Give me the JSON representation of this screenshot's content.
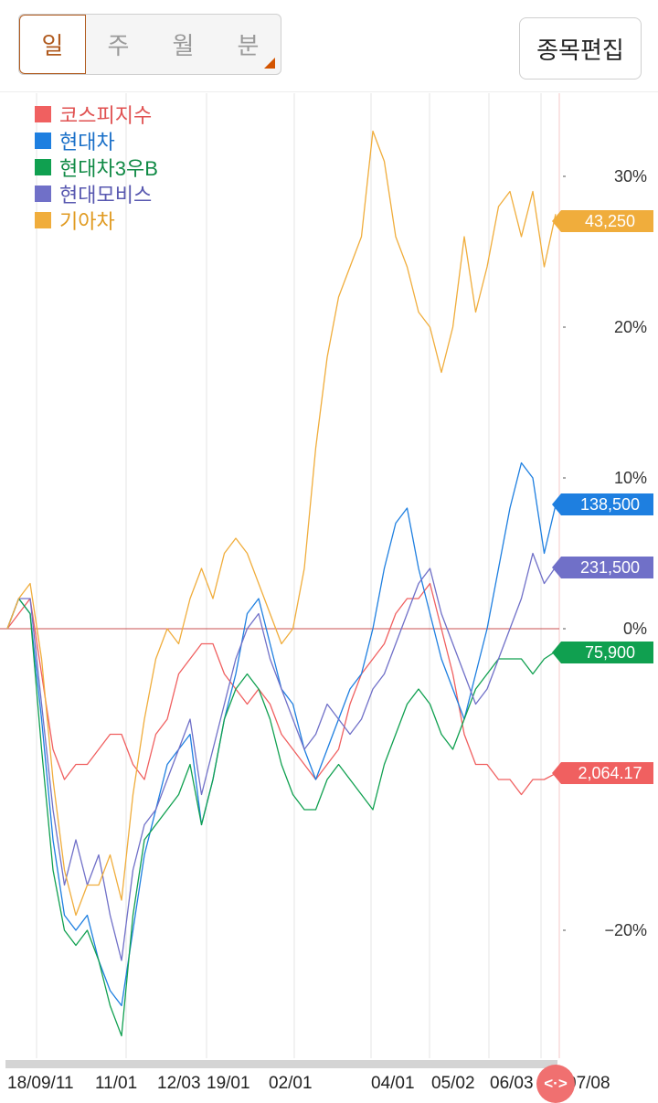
{
  "period_tabs": [
    {
      "label": "일",
      "active": true
    },
    {
      "label": "주",
      "active": false
    },
    {
      "label": "월",
      "active": false
    },
    {
      "label": "분",
      "active": false
    }
  ],
  "edit_button": "종목편집",
  "chart_data": {
    "type": "line",
    "x_tick_labels": [
      "18/09/11",
      "11/01",
      "12/03",
      "19/01",
      "02/01",
      "04/01",
      "05/02",
      "06/03",
      "07/08"
    ],
    "y_tick_labels": [
      "30%",
      "20%",
      "10%",
      "0%",
      "−20%"
    ],
    "ylim": [
      -27,
      36
    ],
    "grid": true,
    "legend_position": "top-left",
    "series": [
      {
        "name": "코스피지수",
        "color": "#f06060",
        "last_label": "2,064.17",
        "last_value": -9.6,
        "values": [
          0,
          1,
          2,
          -3,
          -8,
          -10,
          -9,
          -9,
          -8,
          -7,
          -7,
          -9,
          -10,
          -7,
          -6,
          -3,
          -2,
          -1,
          -1,
          -3,
          -4,
          -5,
          -4,
          -5,
          -7,
          -8,
          -9,
          -10,
          -9,
          -8,
          -5,
          -3,
          -2,
          -1,
          1,
          2,
          2,
          3,
          0,
          -3,
          -7,
          -9,
          -9,
          -10,
          -10,
          -11,
          -10,
          -10,
          -9.6
        ]
      },
      {
        "name": "현대차",
        "color": "#1e7fe0",
        "last_label": "138,500",
        "last_value": 8.2,
        "values": [
          0,
          2,
          1,
          -6,
          -14,
          -19,
          -20,
          -19,
          -22,
          -24,
          -25,
          -20,
          -15,
          -12,
          -9,
          -8,
          -7,
          -13,
          -10,
          -6,
          -3,
          1,
          2,
          -1,
          -4,
          -5,
          -8,
          -10,
          -8,
          -6,
          -4,
          -3,
          0,
          4,
          7,
          8,
          4,
          1,
          -2,
          -4,
          -6,
          -3,
          0,
          4,
          8,
          11,
          10,
          5,
          8.2
        ]
      },
      {
        "name": "현대차3우B",
        "color": "#10a050",
        "last_label": "75,900",
        "last_value": -1.5,
        "values": [
          0,
          2,
          1,
          -8,
          -16,
          -20,
          -21,
          -20,
          -22,
          -25,
          -27,
          -19,
          -14,
          -13,
          -12,
          -11,
          -9,
          -13,
          -10,
          -6,
          -4,
          -3,
          -4,
          -6,
          -9,
          -11,
          -12,
          -12,
          -10,
          -9,
          -10,
          -11,
          -12,
          -9,
          -7,
          -5,
          -4,
          -5,
          -7,
          -8,
          -6,
          -4,
          -3,
          -2,
          -2,
          -2,
          -3,
          -2,
          -1.5
        ]
      },
      {
        "name": "현대모비스",
        "color": "#7070c8",
        "last_label": "231,500",
        "last_value": 4.1,
        "values": [
          0,
          2,
          2,
          -5,
          -12,
          -17,
          -14,
          -17,
          -15,
          -19,
          -22,
          -16,
          -13,
          -12,
          -10,
          -8,
          -6,
          -11,
          -8,
          -5,
          -2,
          0,
          1,
          -2,
          -4,
          -6,
          -8,
          -7,
          -5,
          -6,
          -7,
          -6,
          -4,
          -3,
          -1,
          1,
          3,
          4,
          1,
          -1,
          -3,
          -5,
          -4,
          -2,
          0,
          2,
          5,
          3,
          4.1
        ]
      },
      {
        "name": "기아차",
        "color": "#f0ad3c",
        "last_label": "43,250",
        "last_value": 27.5,
        "values": [
          0,
          2,
          3,
          -2,
          -10,
          -16,
          -19,
          -17,
          -17,
          -15,
          -18,
          -11,
          -6,
          -2,
          0,
          -1,
          2,
          4,
          2,
          5,
          6,
          5,
          3,
          1,
          -1,
          0,
          4,
          12,
          18,
          22,
          24,
          26,
          33,
          31,
          26,
          24,
          21,
          20,
          17,
          20,
          26,
          21,
          24,
          28,
          29,
          26,
          29,
          24,
          27.5
        ]
      }
    ]
  },
  "nav_handle_label": "<·>"
}
